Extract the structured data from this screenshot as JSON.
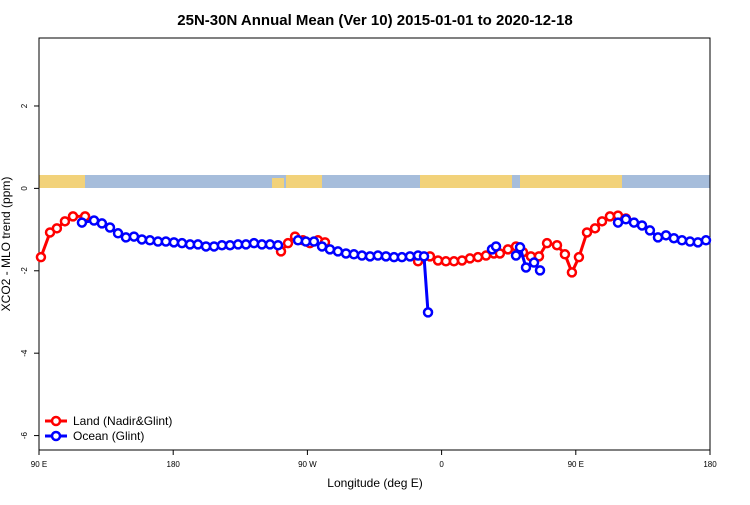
{
  "chart_data": {
    "type": "line",
    "title": "25N-30N Annual Mean (Ver 10)   2015-01-01 to 2020-12-18",
    "x_label": "Longitude (deg E)",
    "y_label": "XCO2 - MLO trend (ppm)",
    "xlim": [
      90,
      540
    ],
    "ylim": [
      -6.35,
      3.65
    ],
    "xticks": [
      {
        "value": 90,
        "label": "90 E"
      },
      180,
      {
        "value": 270,
        "label": "90 W"
      },
      {
        "value": 360,
        "label": "0"
      },
      {
        "value": 450,
        "label": "90 E"
      },
      {
        "value": 540,
        "label": "180"
      }
    ],
    "yticks": [
      2,
      0,
      -2,
      -4,
      -6
    ],
    "legend": "bottom-left",
    "series": [
      {
        "name": "Land (Nadir&Glint)",
        "color": "#ff0000",
        "x": [
          91.3,
          97.4,
          102,
          107.4,
          112.8,
          120.9,
          null,
          252.3,
          257,
          261.7,
          267,
          271.7,
          277.1,
          281.8,
          null,
          344.2,
          352.2,
          357.6,
          362.9,
          368.3,
          373.7,
          379,
          384.4,
          389.8,
          395.1,
          399.1,
          404.5,
          409.9,
          414.6,
          419.9,
          425.3,
          430.7,
          437.4,
          442.7,
          447.4,
          452.1,
          457.5,
          462.9,
          467.6,
          472.9,
          478.3,
          483.6
        ],
        "values": [
          -1.67,
          -1.07,
          -0.97,
          -0.8,
          -0.68,
          -0.68,
          null,
          -1.53,
          -1.33,
          -1.17,
          -1.26,
          -1.33,
          -1.26,
          -1.31,
          null,
          -1.77,
          -1.65,
          -1.75,
          -1.77,
          -1.77,
          -1.75,
          -1.7,
          -1.67,
          -1.63,
          -1.58,
          -1.58,
          -1.48,
          -1.41,
          -1.55,
          -1.65,
          -1.65,
          -1.33,
          -1.38,
          -1.6,
          -2.04,
          -1.67,
          -1.07,
          -0.97,
          -0.8,
          -0.68,
          -0.66,
          -0.73
        ]
      },
      {
        "name": "Ocean (Glint)",
        "color": "#0000ff",
        "x": [
          118.8,
          126.9,
          132.2,
          137.6,
          143,
          148.3,
          153.7,
          159,
          164.4,
          169.8,
          175.1,
          180.5,
          185.9,
          191.3,
          196.6,
          202,
          207.4,
          212.7,
          218.1,
          223.5,
          228.8,
          234.2,
          239.5,
          244.9,
          250.3,
          null,
          263.7,
          269,
          274.4,
          279.8,
          285.1,
          290.5,
          295.9,
          301.2,
          306.6,
          312,
          317.3,
          322.7,
          328.1,
          333.4,
          338.8,
          344.2,
          348.2,
          350.9,
          null,
          393.8,
          396.5,
          null,
          409.9,
          412.6,
          416.6,
          422,
          426,
          null,
          478.3,
          483.6,
          489,
          494.4,
          499.7,
          505.1,
          510.5,
          515.8,
          521.2,
          526.6,
          531.9,
          537.3
        ],
        "values": [
          -0.83,
          -0.78,
          -0.85,
          -0.95,
          -1.09,
          -1.19,
          -1.17,
          -1.24,
          -1.26,
          -1.29,
          -1.29,
          -1.31,
          -1.33,
          -1.36,
          -1.36,
          -1.41,
          -1.41,
          -1.38,
          -1.38,
          -1.36,
          -1.36,
          -1.33,
          -1.36,
          -1.36,
          -1.38,
          null,
          -1.26,
          -1.29,
          -1.29,
          -1.41,
          -1.48,
          -1.53,
          -1.58,
          -1.6,
          -1.63,
          -1.65,
          -1.63,
          -1.65,
          -1.67,
          -1.67,
          -1.65,
          -1.63,
          -1.65,
          -3.01,
          null,
          -1.48,
          -1.41,
          null,
          -1.63,
          -1.43,
          -1.92,
          -1.8,
          -1.99,
          null,
          -0.83,
          -0.75,
          -0.83,
          -0.9,
          -1.02,
          -1.19,
          -1.14,
          -1.21,
          -1.26,
          -1.29,
          -1.31,
          -1.26
        ]
      }
    ]
  }
}
